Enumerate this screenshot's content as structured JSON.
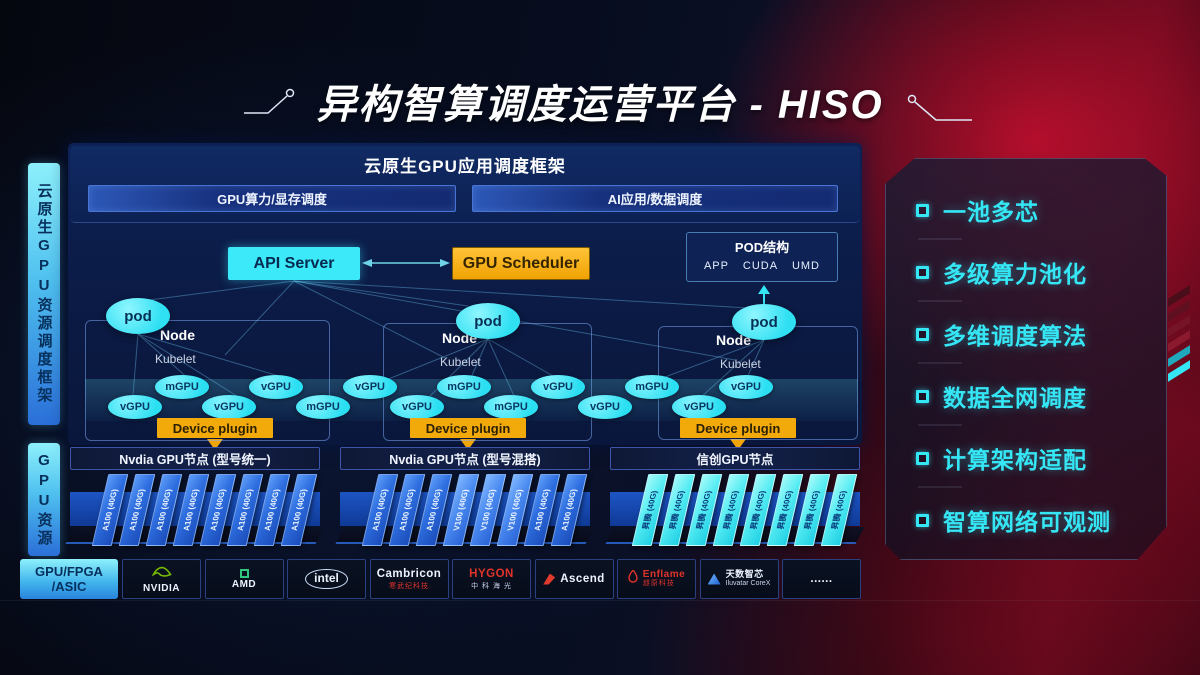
{
  "title": "异构智算调度运营平台 - HISO",
  "left_rails": {
    "top": "云原生GPU资源调度框架",
    "bottom": "GPU资源"
  },
  "framework": {
    "title": "云原生GPU应用调度框架",
    "bars": [
      "GPU算力/显存调度",
      "AI应用/数据调度"
    ]
  },
  "scheduler": {
    "api_server": "API Server",
    "gpu_scheduler": "GPU Scheduler",
    "pod_struct": {
      "title": "POD结构",
      "items": [
        "APP",
        "CUDA",
        "UMD"
      ]
    },
    "nodes": [
      {
        "name": "Node",
        "agent": "Kubelet",
        "pod": "pod"
      },
      {
        "name": "Node",
        "agent": "Kubelet",
        "pod": "pod"
      },
      {
        "name": "Node",
        "agent": "Kubelet",
        "pod": "pod"
      }
    ],
    "gpu_band": [
      "vGPU",
      "mGPU",
      "vGPU",
      "vGPU",
      "mGPU",
      "vGPU",
      "vGPU",
      "mGPU",
      "mGPU",
      "vGPU",
      "vGPU",
      "mGPU",
      "vGPU",
      "vGPU"
    ],
    "device_plugin": "Device plugin"
  },
  "gpu_pool": {
    "groups": [
      {
        "title": "Nvdia GPU节点 (型号统一)",
        "cards": [
          {
            "label": "A100 (40G)",
            "variant": "blue"
          },
          {
            "label": "A100 (40G)",
            "variant": "blue"
          },
          {
            "label": "A100 (40G)",
            "variant": "blue"
          },
          {
            "label": "A100 (40G)",
            "variant": "blue"
          },
          {
            "label": "A100 (40G)",
            "variant": "blue"
          },
          {
            "label": "A100 (40G)",
            "variant": "blue"
          },
          {
            "label": "A100 (40G)",
            "variant": "blue"
          },
          {
            "label": "A100 (40G)",
            "variant": "blue"
          }
        ]
      },
      {
        "title": "Nvdia GPU节点 (型号混搭)",
        "cards": [
          {
            "label": "A100 (40G)",
            "variant": "blue"
          },
          {
            "label": "A100 (40G)",
            "variant": "blue"
          },
          {
            "label": "A100 (40G)",
            "variant": "blue"
          },
          {
            "label": "V100 (40G)",
            "variant": "mid"
          },
          {
            "label": "V100 (40G)",
            "variant": "mid"
          },
          {
            "label": "V100 (40G)",
            "variant": "mid"
          },
          {
            "label": "A100 (40G)",
            "variant": "blue"
          },
          {
            "label": "A100 (40G)",
            "variant": "blue"
          }
        ]
      },
      {
        "title": "信创GPU节点",
        "cards": [
          {
            "label": "昇腾 (40G)",
            "variant": "cyan"
          },
          {
            "label": "昇腾 (40G)",
            "variant": "cyan"
          },
          {
            "label": "昇腾 (40G)",
            "variant": "cyan"
          },
          {
            "label": "昇腾 (40G)",
            "variant": "cyan"
          },
          {
            "label": "昇腾 (40G)",
            "variant": "cyan"
          },
          {
            "label": "昇腾 (40G)",
            "variant": "cyan"
          },
          {
            "label": "昇腾 (40G)",
            "variant": "cyan"
          },
          {
            "label": "昇腾 (40G)",
            "variant": "cyan"
          }
        ]
      }
    ]
  },
  "vendors": {
    "label_line1": "GPU/FPGA",
    "label_line2": "/ASIC",
    "logos": [
      {
        "name": "nvidia",
        "text": "NVIDIA"
      },
      {
        "name": "amd",
        "text": "AMD"
      },
      {
        "name": "intel",
        "text": "intel"
      },
      {
        "name": "cambricon",
        "text": "Cambricon",
        "sub": "寒武纪科技"
      },
      {
        "name": "hygon",
        "text": "HYGON",
        "sub": "中 科 海 光"
      },
      {
        "name": "ascend",
        "text": "Ascend"
      },
      {
        "name": "enflame",
        "text": "Enflame",
        "sub": "燧原科技"
      },
      {
        "name": "iluvatar",
        "text": "天数智芯",
        "sub": "Iluvatar CoreX"
      },
      {
        "name": "more",
        "text": "......"
      }
    ]
  },
  "features": [
    "一池多芯",
    "多级算力池化",
    "多维调度算法",
    "数据全网调度",
    "计算架构适配",
    "智算网络可观测"
  ],
  "colors": {
    "cyan": "#35e6f5",
    "yellow": "#f2a90a",
    "card_blue": "#2f74e8",
    "card_cyan": "#47ecf2",
    "nvidia_green": "#76b900",
    "accent_red": "#c3112e",
    "panel_blue": "#0c2052"
  }
}
